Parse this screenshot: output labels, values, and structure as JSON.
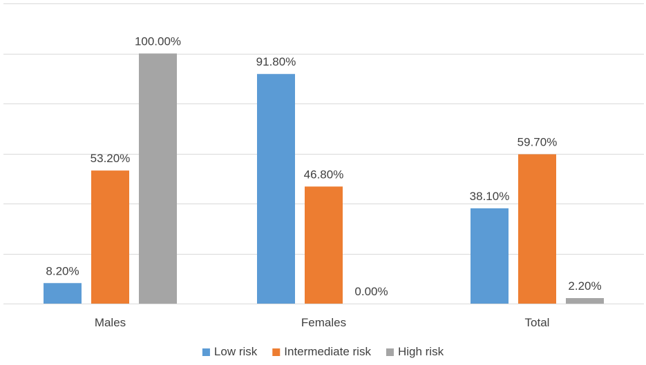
{
  "chart_data": {
    "type": "bar",
    "title": "",
    "xlabel": "",
    "ylabel": "",
    "categories": [
      "Males",
      "Females",
      "Total"
    ],
    "series": [
      {
        "name": "Low risk",
        "color": "#5b9bd5",
        "values": [
          8.2,
          91.8,
          38.1
        ],
        "labels": [
          "8.20%",
          "91.80%",
          "38.10%"
        ]
      },
      {
        "name": "Intermediate risk",
        "color": "#ed7d31",
        "values": [
          53.2,
          46.8,
          59.7
        ],
        "labels": [
          "53.20%",
          "46.80%",
          "59.70%"
        ]
      },
      {
        "name": "High risk",
        "color": "#a5a5a5",
        "values": [
          100.0,
          0.0,
          2.2
        ],
        "labels": [
          "100.00%",
          "0.00%",
          "2.20%"
        ]
      }
    ],
    "ylim": [
      0,
      120
    ],
    "y_gridlines": [
      0,
      20,
      40,
      60,
      80,
      100,
      120
    ],
    "y_tick_labels_shown": false,
    "grid": true,
    "legend_position": "bottom"
  }
}
